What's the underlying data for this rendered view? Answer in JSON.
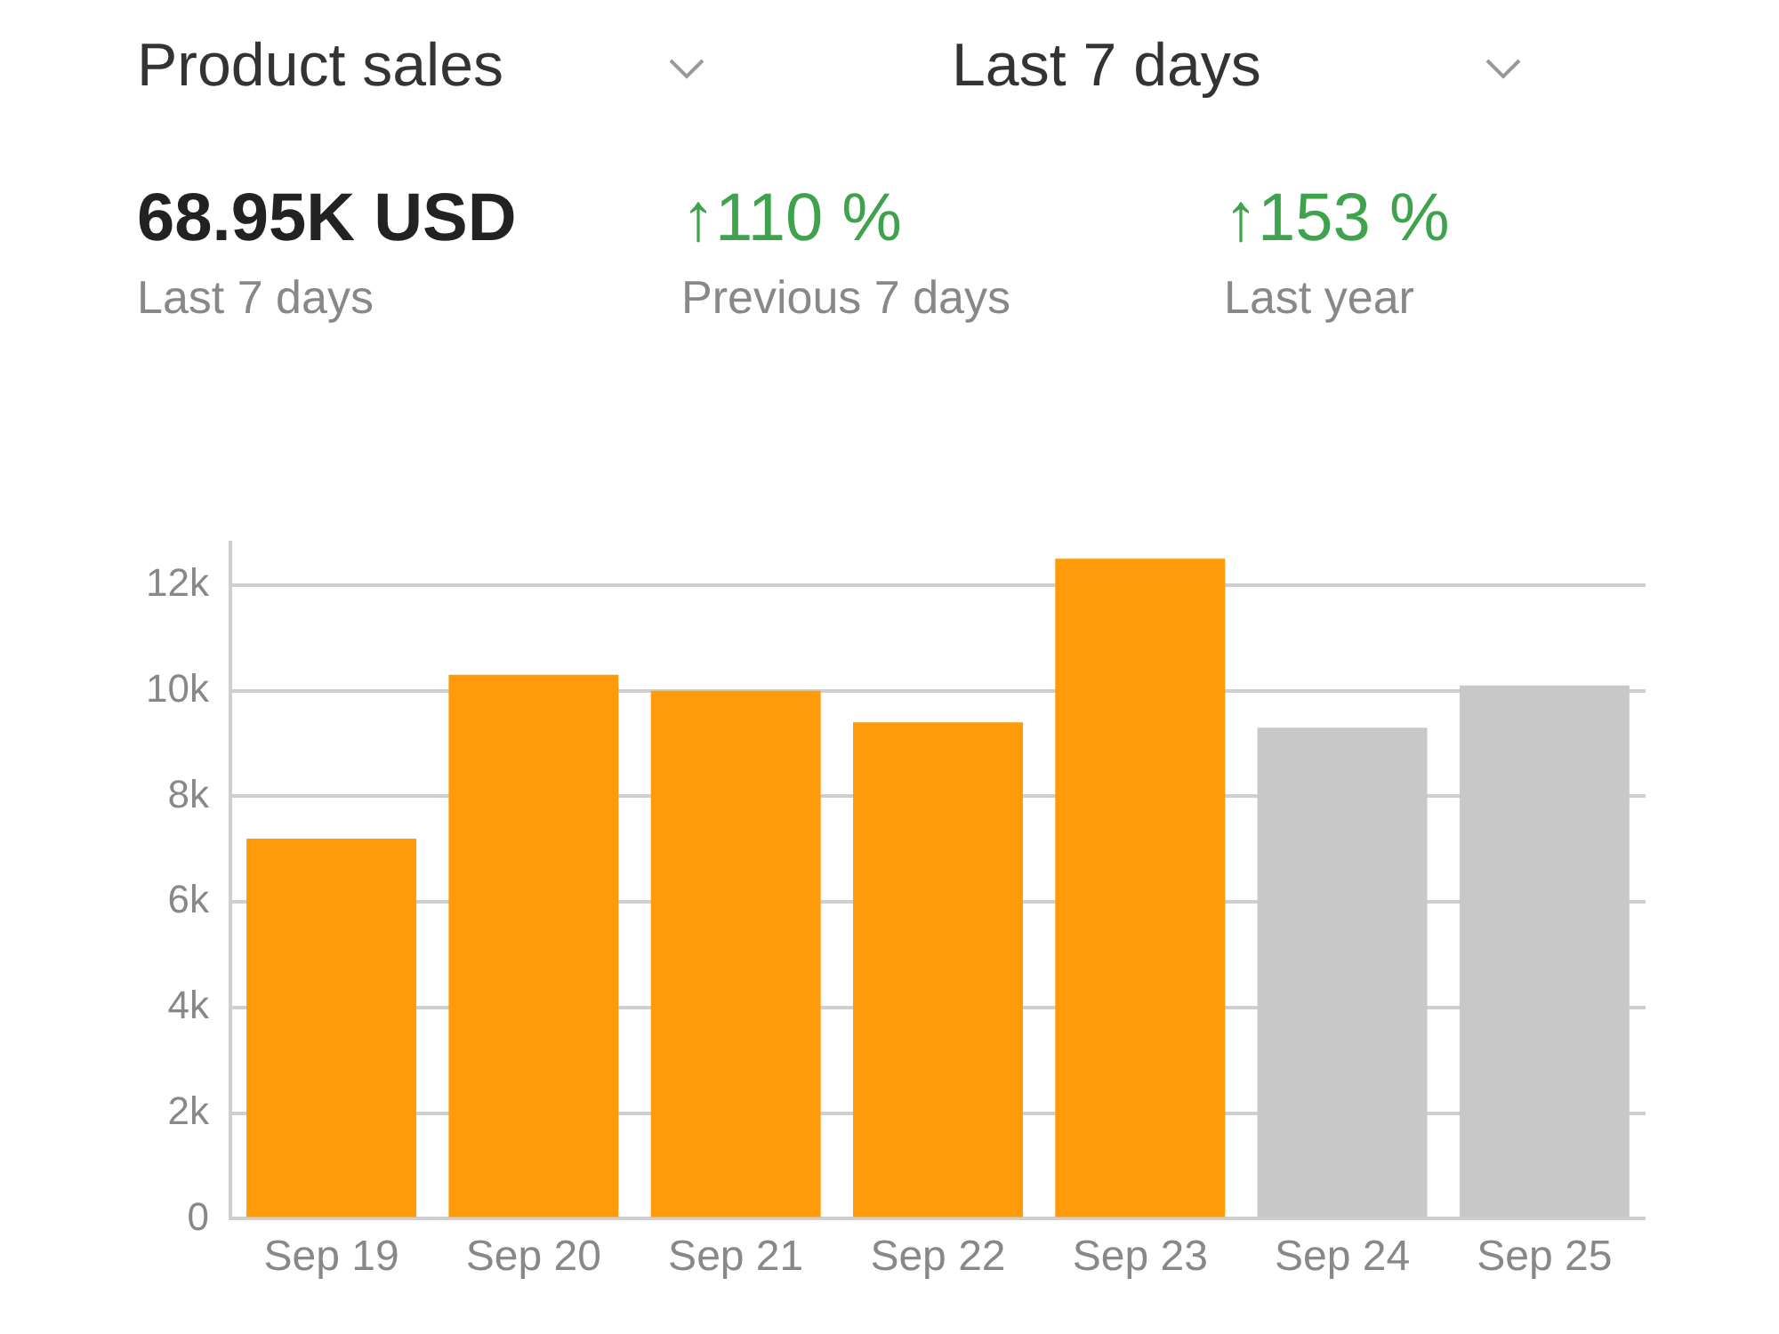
{
  "chart_data": {
    "type": "bar",
    "categories": [
      "Sep 19",
      "Sep 20",
      "Sep 21",
      "Sep 22",
      "Sep 23",
      "Sep 24",
      "Sep 25"
    ],
    "values": [
      7200,
      10300,
      10000,
      9400,
      12500,
      9300,
      10100
    ],
    "colors": [
      "#ff9a0a",
      "#ff9a0a",
      "#ff9a0a",
      "#ff9a0a",
      "#ff9a0a",
      "#c8c8c8",
      "#c8c8c8"
    ],
    "ylim": [
      0,
      12800
    ],
    "yticks": [
      0,
      {
        "value": 2000,
        "label": "2k"
      },
      {
        "value": 4000,
        "label": "4k"
      },
      {
        "value": 6000,
        "label": "6k"
      },
      {
        "value": 8000,
        "label": "8k"
      },
      {
        "value": 10000,
        "label": "10k"
      },
      {
        "value": 12000,
        "label": "12k"
      }
    ],
    "grid": "y",
    "annotations": [
      "Product sales",
      "Last 7 days",
      "68.95K USD",
      "Last 7 days",
      "↑110 %",
      "Previous 7 days",
      "↑153 %",
      "Last year"
    ]
  }
}
